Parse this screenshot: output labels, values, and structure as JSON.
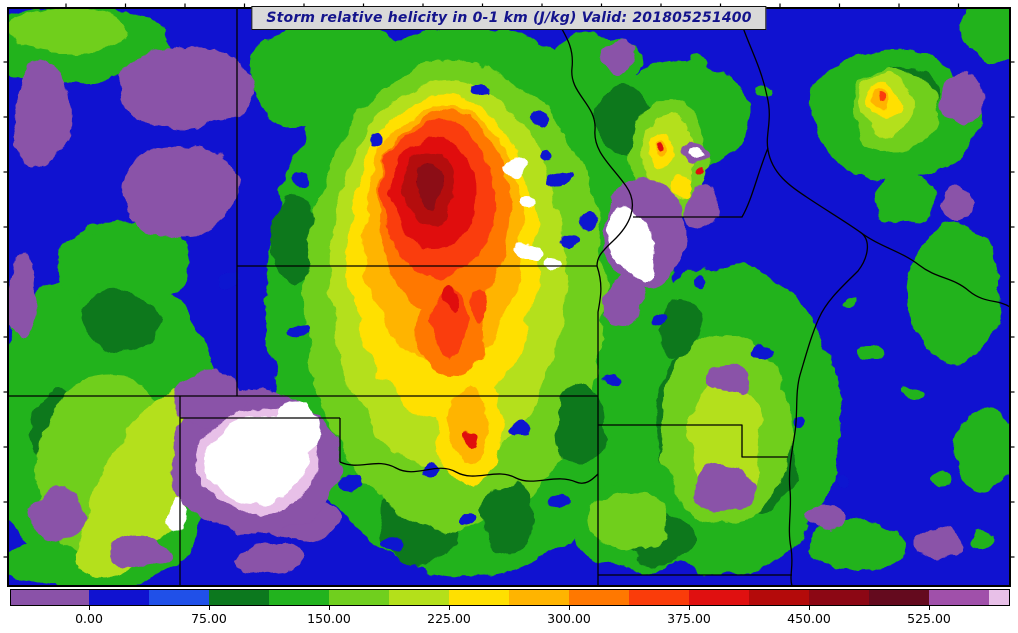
{
  "title": {
    "text": "Storm relative helicity in 0-1 km (J/kg) Valid: 201805251400",
    "variable": "Storm relative helicity in 0-1 km",
    "units": "J/kg",
    "valid": "201805251400"
  },
  "colorbar": {
    "ticks": [
      "0.00",
      "75.00",
      "150.00",
      "225.00",
      "300.00",
      "375.00",
      "450.00",
      "525.00"
    ],
    "colors": [
      "#8a52a8",
      "#1012d0",
      "#2050e8",
      "#0c781e",
      "#22b31e",
      "#70cf1e",
      "#b4e01a",
      "#ffe000",
      "#ffb400",
      "#ff7800",
      "#fa3c0a",
      "#e01010",
      "#b40a0a",
      "#8c0714",
      "#640a1e",
      "#a050aa",
      "#e8c0e8"
    ],
    "offscale_color": "#ffffff"
  },
  "map": {
    "boundary_color": "#000000",
    "frame_color": "#000000",
    "background_color": "#ffffff"
  }
}
